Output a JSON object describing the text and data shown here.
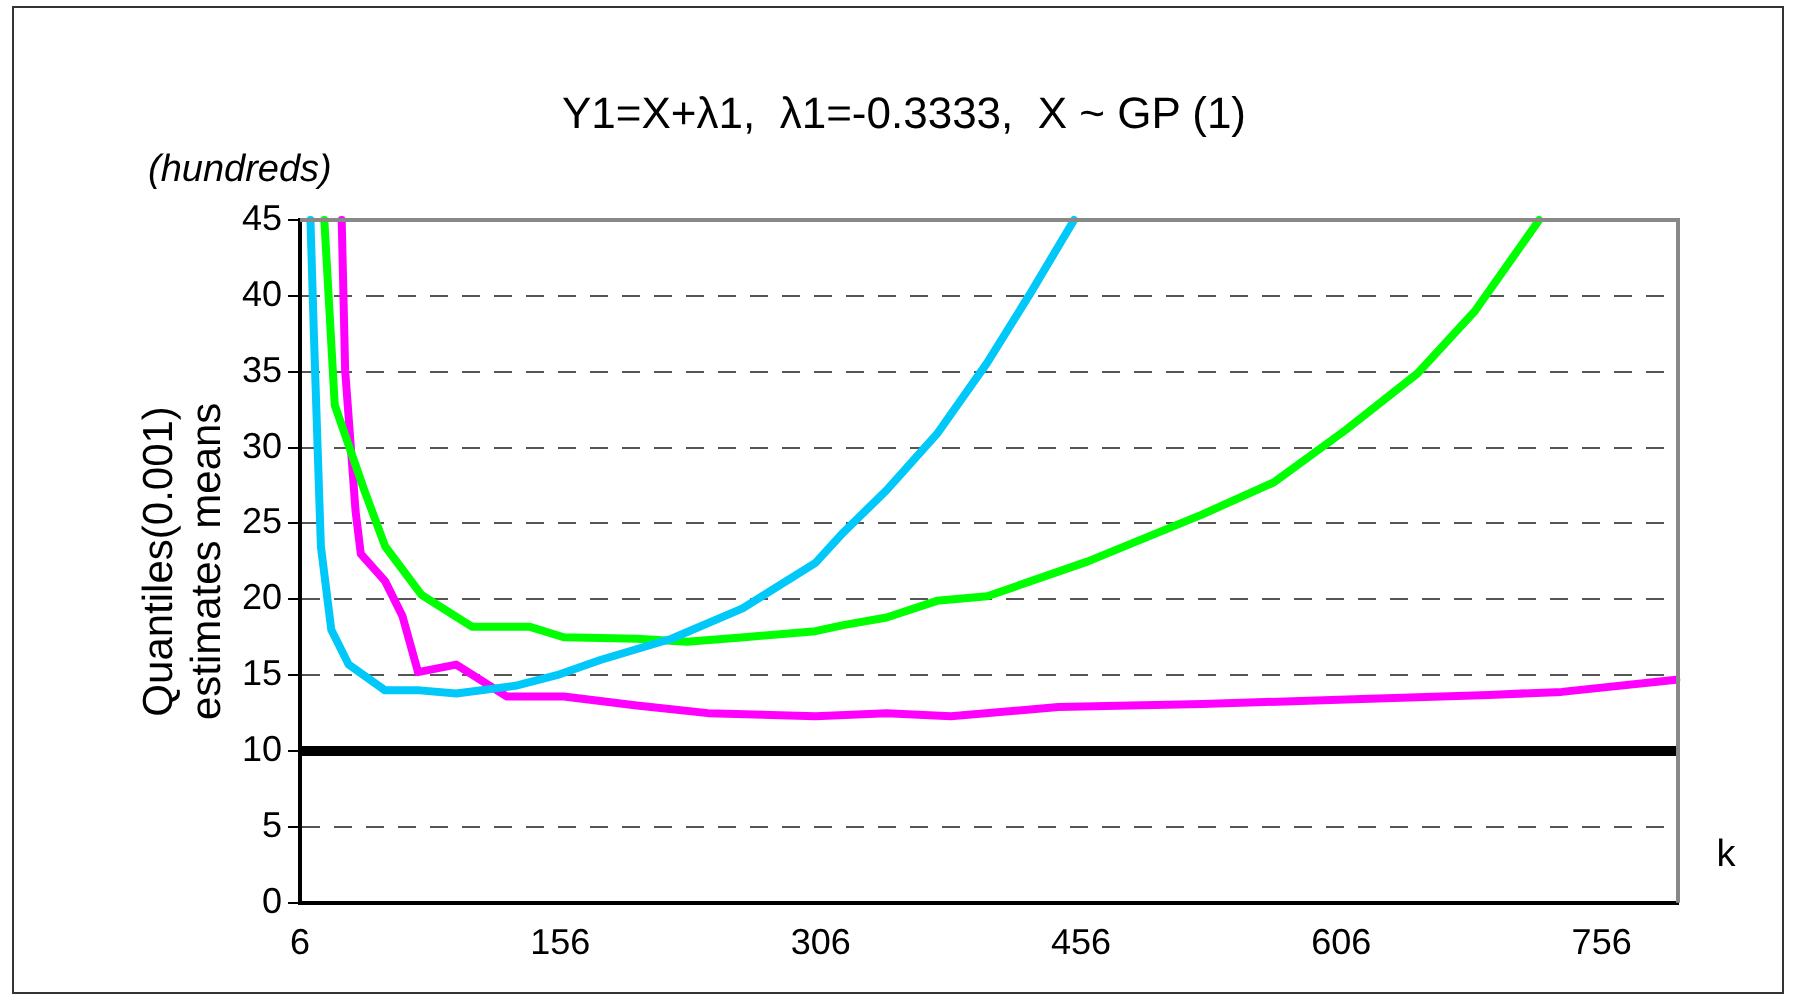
{
  "chart_data": {
    "type": "line",
    "title": "Y1=X+λ1,  λ1=-0.3333,  X ~ GP (1)",
    "xlabel": "k",
    "ylabel": "Quantiles(0.001)\nestimates means",
    "annotations": [
      "(hundreds)"
    ],
    "xlim": [
      6,
      800
    ],
    "xticks": [
      6,
      156,
      306,
      456,
      606,
      756
    ],
    "ylim": [
      0,
      45
    ],
    "yticks": [
      0,
      5,
      10,
      15,
      20,
      25,
      30,
      35,
      40,
      45
    ],
    "grid": "y",
    "legend": false,
    "marker": "none",
    "line_style": "solid",
    "series": [
      {
        "color": "#00c8f8",
        "x": [
          12,
          14,
          18,
          24,
          34,
          55,
          75,
          96,
          130,
          154,
          179,
          220,
          261,
          303,
          319,
          344,
          373,
          402,
          427,
          452
        ],
        "values": [
          45,
          37.4,
          23.5,
          18,
          15.7,
          14,
          14,
          13.8,
          14.3,
          15,
          16,
          17.4,
          19.4,
          22.4,
          24.4,
          27.2,
          30.9,
          35.6,
          40.2,
          45
        ]
      },
      {
        "color": "#00ff00",
        "x": [
          20,
          26,
          43,
          55,
          76,
          105,
          138,
          158,
          200,
          229,
          262,
          303,
          319,
          344,
          373,
          402,
          460,
          526,
          567,
          609,
          650,
          683,
          720
        ],
        "values": [
          45,
          32.8,
          27.2,
          23.5,
          20.3,
          18.2,
          18.2,
          17.5,
          17.4,
          17.2,
          17.5,
          17.9,
          18.3,
          18.8,
          19.9,
          20.2,
          22.5,
          25.6,
          27.7,
          31.2,
          34.9,
          39,
          45
        ]
      },
      {
        "color": "#ff00ff",
        "x": [
          30,
          32,
          38,
          41,
          55,
          65,
          74,
          96,
          125,
          158,
          200,
          241,
          303,
          344,
          381,
          443,
          526,
          609,
          691,
          733,
          799
        ],
        "values": [
          45,
          35.1,
          25.8,
          23,
          21.2,
          18.9,
          15.2,
          15.7,
          13.6,
          13.6,
          13,
          12.5,
          12.3,
          12.5,
          12.3,
          12.9,
          13.1,
          13.4,
          13.7,
          13.9,
          14.7
        ]
      }
    ],
    "ref_lines": [
      {
        "axis": "y",
        "value": 10,
        "color": "#000000",
        "line_style": "solid"
      }
    ]
  }
}
